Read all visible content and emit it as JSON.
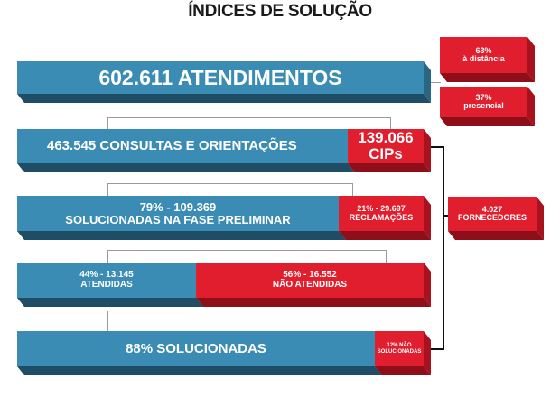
{
  "title": "ÍNDICES DE SOLUÇÃO",
  "atendimentos": "602.611 ATENDIMENTOS",
  "distancia": {
    "pct": "63%",
    "label": "à distância"
  },
  "presencial": {
    "pct": "37%",
    "label": "presencial"
  },
  "consultas": "463.545 CONSULTAS E ORIENTAÇÕES",
  "cips": {
    "value": "139.066",
    "label": "CIPs"
  },
  "solucionadas_preliminar": {
    "line1": "79% - 109.369",
    "line2": "SOLUCIONADAS NA FASE PRELIMINAR"
  },
  "reclamacoes": {
    "line1": "21% - 29.697",
    "line2": "RECLAMAÇÕES"
  },
  "fornecedores": {
    "line1": "4.027",
    "line2": "FORNECEDORES"
  },
  "atendidas": {
    "line1": "44% - 13.145",
    "line2": "ATENDIDAS"
  },
  "nao_atendidas": {
    "line1": "56% - 16.552",
    "line2": "NÃO ATENDIDAS"
  },
  "solucionadas": "88% SOLUCIONADAS",
  "nao_solucionadas": {
    "line1": "12% NÃO",
    "line2": "SOLUCIONADAS"
  },
  "colors": {
    "blue": "#3b8cb5",
    "red": "#e01e2d"
  }
}
